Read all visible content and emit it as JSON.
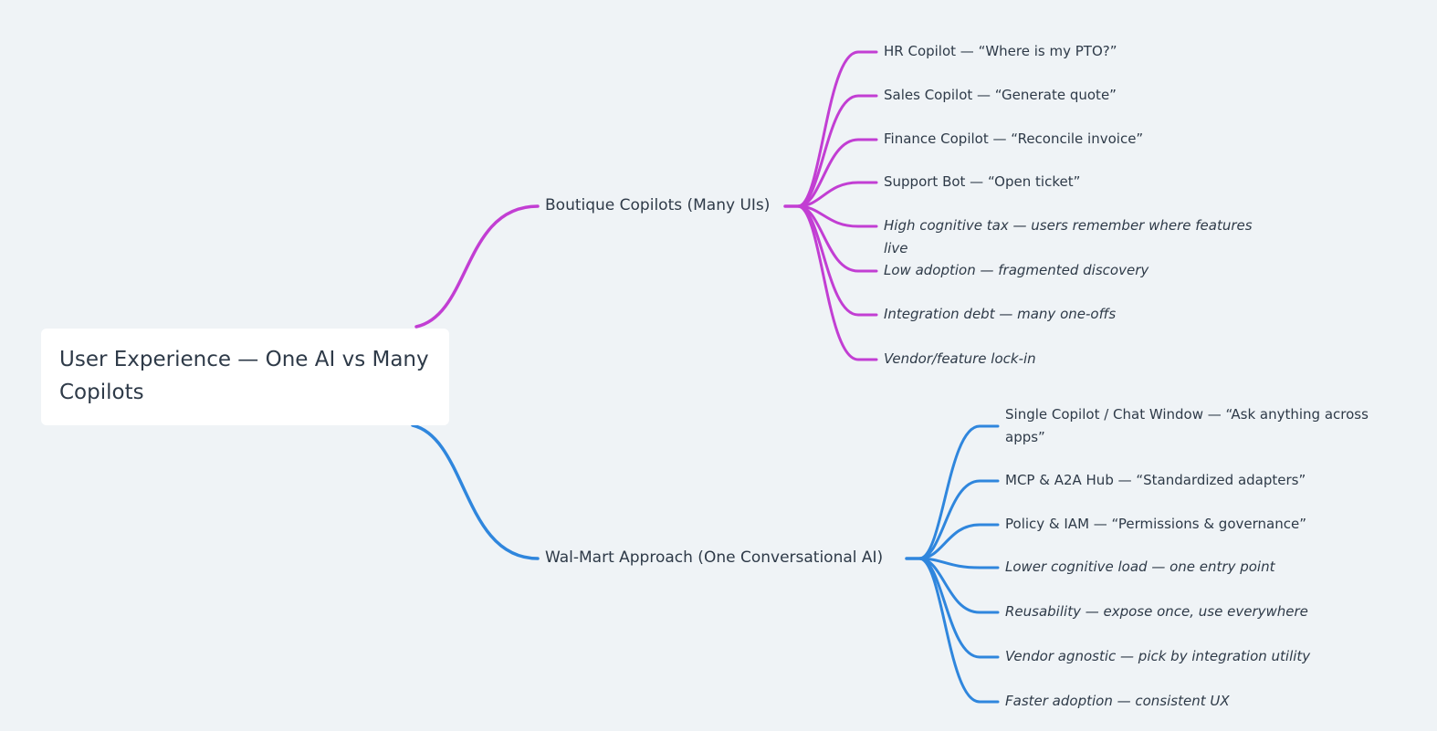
{
  "root": {
    "title": "User Experience — One AI vs Many Copilots"
  },
  "branches": [
    {
      "label": "Boutique Copilots (Many UIs)",
      "color": "#c23ed3",
      "children": [
        {
          "text": "HR Copilot — “Where is my PTO?”",
          "italic": false
        },
        {
          "text": "Sales Copilot — “Generate quote”",
          "italic": false
        },
        {
          "text": "Finance Copilot — “Reconcile invoice”",
          "italic": false
        },
        {
          "text": "Support Bot — “Open ticket”",
          "italic": false
        },
        {
          "text": "High cognitive tax — users remember where features live",
          "italic": true
        },
        {
          "text": "Low adoption — fragmented discovery",
          "italic": true
        },
        {
          "text": "Integration debt — many one-offs",
          "italic": true
        },
        {
          "text": "Vendor/feature lock-in",
          "italic": true
        }
      ]
    },
    {
      "label": "Wal-Mart Approach (One Conversational AI)",
      "color": "#2f86dd",
      "children": [
        {
          "text": "Single Copilot / Chat Window — “Ask anything across apps”",
          "italic": false
        },
        {
          "text": "MCP & A2A Hub — “Standardized adapters”",
          "italic": false
        },
        {
          "text": "Policy & IAM — “Permissions & governance”",
          "italic": false
        },
        {
          "text": "Lower cognitive load — one entry point",
          "italic": true
        },
        {
          "text": "Reusability — expose once, use everywhere",
          "italic": true
        },
        {
          "text": "Vendor agnostic — pick by integration utility",
          "italic": true
        },
        {
          "text": "Faster adoption — consistent UX",
          "italic": true
        }
      ]
    }
  ]
}
